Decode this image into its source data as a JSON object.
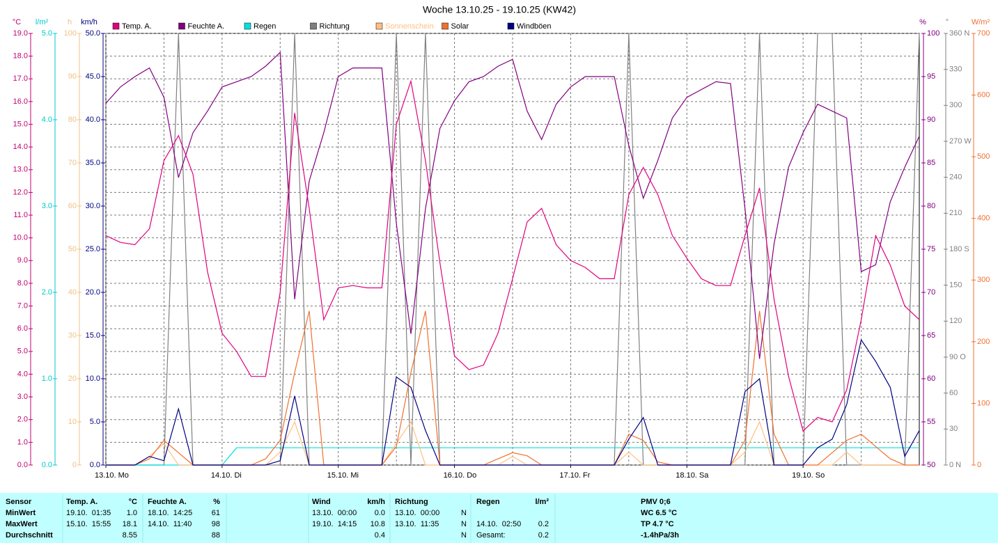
{
  "chart_data": {
    "type": "line",
    "title": "Woche 13.10.25 - 19.10.25 (KW42)",
    "xlim": [
      0,
      168
    ],
    "xticks": [
      {
        "value": 0,
        "label": "13.10. Mo"
      },
      {
        "value": 24,
        "label": "14.10. Di"
      },
      {
        "value": 48,
        "label": "15.10. Mi"
      },
      {
        "value": 72,
        "label": "16.10. Do"
      },
      {
        "value": 96,
        "label": "17.10. Fr"
      },
      {
        "value": 120,
        "label": "18.10. Sa"
      },
      {
        "value": 144,
        "label": "19.10. So"
      }
    ],
    "xgrid": [
      12,
      36,
      60,
      84,
      108,
      132,
      156
    ],
    "grid": true,
    "axes": [
      {
        "label": "°C",
        "color": "#c00070",
        "lim": [
          0,
          19
        ],
        "ticks": [
          {
            "value": 0,
            "label": "0.0"
          },
          {
            "value": 1,
            "label": "1.0"
          },
          {
            "value": 2,
            "label": "2.0"
          },
          {
            "value": 3,
            "label": "3.0"
          },
          {
            "value": 4,
            "label": "4.0"
          },
          {
            "value": 5,
            "label": "5.0"
          },
          {
            "value": 6,
            "label": "6.0"
          },
          {
            "value": 7,
            "label": "7.0"
          },
          {
            "value": 8,
            "label": "8.0"
          },
          {
            "value": 9,
            "label": "9.0"
          },
          {
            "value": 10,
            "label": "10.0"
          },
          {
            "value": 11,
            "label": "11.0"
          },
          {
            "value": 12,
            "label": "12.0"
          },
          {
            "value": 13,
            "label": "13.0"
          },
          {
            "value": 14,
            "label": "14.0"
          },
          {
            "value": 15,
            "label": "15.0"
          },
          {
            "value": 16,
            "label": "16.0"
          },
          {
            "value": 17,
            "label": "17.0"
          },
          {
            "value": 18,
            "label": "18.0"
          },
          {
            "value": 19,
            "label": "19.0"
          }
        ]
      },
      {
        "label": "l/m²",
        "color": "#00c8c8",
        "lim": [
          0,
          5
        ],
        "ticks": [
          {
            "value": 0,
            "label": "0.0"
          },
          {
            "value": 1,
            "label": "1.0"
          },
          {
            "value": 2,
            "label": "2.0"
          },
          {
            "value": 3,
            "label": "3.0"
          },
          {
            "value": 4,
            "label": "4.0"
          },
          {
            "value": 5,
            "label": "5.0"
          }
        ]
      },
      {
        "label": "h",
        "color": "#f0c080",
        "lim": [
          0,
          100
        ],
        "ticks": [
          0,
          10,
          20,
          30,
          40,
          50,
          60,
          70,
          80,
          90,
          100
        ]
      },
      {
        "label": "km/h",
        "color": "#000080",
        "lim": [
          0,
          50
        ],
        "ticks": [
          {
            "value": 0,
            "label": "0.0"
          },
          {
            "value": 5,
            "label": "5.0"
          },
          {
            "value": 10,
            "label": "10.0"
          },
          {
            "value": 15,
            "label": "15.0"
          },
          {
            "value": 20,
            "label": "20.0"
          },
          {
            "value": 25,
            "label": "25.0"
          },
          {
            "value": 30,
            "label": "30.0"
          },
          {
            "value": 35,
            "label": "35.0"
          },
          {
            "value": 40,
            "label": "40.0"
          },
          {
            "value": 45,
            "label": "45.0"
          },
          {
            "value": 50,
            "label": "50.0"
          }
        ]
      },
      {
        "label": "%",
        "color": "#800080",
        "lim": [
          50,
          100
        ],
        "ticks": [
          50,
          55,
          60,
          65,
          70,
          75,
          80,
          85,
          90,
          95,
          100
        ]
      },
      {
        "label": "°",
        "color": "#808080",
        "lim": [
          0,
          360
        ],
        "ticks": [
          {
            "value": 0,
            "label": "0 N"
          },
          30,
          60,
          {
            "value": 90,
            "label": "90 O"
          },
          120,
          150,
          {
            "value": 180,
            "label": "180 S"
          },
          210,
          240,
          {
            "value": 270,
            "label": "270 W"
          },
          300,
          330,
          {
            "value": 360,
            "label": "360 N"
          }
        ]
      },
      {
        "label": "W/m²",
        "color": "#f07030",
        "lim": [
          0,
          700
        ],
        "ticks": [
          0,
          100,
          200,
          300,
          400,
          500,
          600,
          700
        ]
      }
    ],
    "x": [
      0,
      3,
      6,
      9,
      12,
      15,
      18,
      21,
      24,
      27,
      30,
      33,
      36,
      39,
      42,
      45,
      48,
      51,
      54,
      57,
      60,
      63,
      66,
      69,
      72,
      75,
      78,
      81,
      84,
      87,
      90,
      93,
      96,
      99,
      102,
      105,
      108,
      111,
      114,
      117,
      120,
      123,
      126,
      129,
      132,
      135,
      138,
      141,
      144,
      147,
      150,
      153,
      156,
      159,
      162,
      165,
      168
    ],
    "series": [
      {
        "name": "Temp. A.",
        "color": "#e0007f",
        "axis": 0,
        "values": [
          10.1,
          9.8,
          9.7,
          10.4,
          13.4,
          14.5,
          12.8,
          8.5,
          5.8,
          5.0,
          3.9,
          3.9,
          7.6,
          15.5,
          11.3,
          6.4,
          7.8,
          7.9,
          7.8,
          7.8,
          15.0,
          16.9,
          13.4,
          8.9,
          4.8,
          4.2,
          4.4,
          5.8,
          8.2,
          10.7,
          11.3,
          9.7,
          9.0,
          8.7,
          8.2,
          8.2,
          11.9,
          13.1,
          11.9,
          10.1,
          9.1,
          8.2,
          7.9,
          7.9,
          10.1,
          12.2,
          7.3,
          3.9,
          1.5,
          2.1,
          1.9,
          3.3,
          6.4,
          10.1,
          8.8,
          7.0,
          6.4
        ]
      },
      {
        "name": "Feuchte A.",
        "color": "#800080",
        "axis": 4,
        "values": [
          91.9,
          93.8,
          95,
          96,
          92.6,
          83.3,
          88.5,
          91,
          93.8,
          94.4,
          95,
          96.2,
          97.8,
          69.2,
          82.9,
          88.5,
          95,
          96,
          96,
          96,
          78,
          65.2,
          79.7,
          89,
          92.2,
          94.4,
          95,
          96.2,
          97,
          91,
          87.7,
          91.8,
          93.8,
          95,
          95,
          95,
          87,
          80.9,
          85.3,
          90.2,
          92.6,
          93.5,
          94.4,
          94.2,
          79.7,
          62.3,
          75.6,
          84.5,
          88.5,
          91.8,
          91,
          90.2,
          72.4,
          73.2,
          80.5,
          84.5,
          88.1
        ]
      },
      {
        "name": "Regen",
        "color": "#00e0e0",
        "axis": 1,
        "values": [
          0,
          0,
          0,
          0,
          0,
          0,
          0,
          0,
          0,
          0.2,
          0.2,
          0.2,
          0.2,
          0.2,
          0.2,
          0.2,
          0.2,
          0.2,
          0.2,
          0.2,
          0.2,
          0.2,
          0.2,
          0.2,
          0.2,
          0.2,
          0.2,
          0.2,
          0.2,
          0.2,
          0.2,
          0.2,
          0.2,
          0.2,
          0.2,
          0.2,
          0.2,
          0.2,
          0.2,
          0.2,
          0.2,
          0.2,
          0.2,
          0.2,
          0.2,
          0.2,
          0.2,
          0.2,
          0.2,
          0.2,
          0.2,
          0.2,
          0.2,
          0.2,
          0.2,
          0.2,
          0.2
        ]
      },
      {
        "name": "Richtung",
        "color": "#808080",
        "axis": 5,
        "values": [
          0,
          0,
          0,
          0,
          0,
          360,
          0,
          0,
          0,
          0,
          0,
          0,
          0,
          360,
          0,
          0,
          0,
          0,
          0,
          0,
          360,
          0,
          360,
          0,
          0,
          0,
          0,
          0,
          0,
          0,
          0,
          0,
          0,
          0,
          0,
          0,
          360,
          0,
          0,
          0,
          0,
          0,
          0,
          0,
          0,
          360,
          0,
          0,
          0,
          360,
          360,
          0,
          0,
          0,
          0,
          0,
          360
        ]
      },
      {
        "name": "Sonnenschein",
        "color": "#ffc080",
        "axis": 2,
        "values": [
          0,
          0,
          0,
          2,
          5,
          0,
          0,
          0,
          0,
          0,
          0,
          0,
          3,
          10,
          0,
          0,
          0,
          0,
          0,
          0,
          5,
          10,
          0,
          0,
          0,
          0,
          0,
          0,
          2,
          0,
          0,
          0,
          0,
          0,
          0,
          0,
          3,
          0,
          0,
          0,
          0,
          0,
          0,
          0,
          3,
          10,
          0,
          0,
          0,
          0,
          0,
          3,
          0,
          0,
          0,
          0,
          0
        ]
      },
      {
        "name": "Solar",
        "color": "#f07030",
        "axis": 6,
        "values": [
          0,
          0,
          0,
          10,
          40,
          20,
          0,
          0,
          0,
          0,
          0,
          10,
          40,
          150,
          250,
          0,
          0,
          0,
          0,
          0,
          30,
          150,
          250,
          0,
          0,
          0,
          0,
          10,
          20,
          15,
          0,
          0,
          0,
          0,
          0,
          0,
          50,
          40,
          5,
          0,
          0,
          0,
          0,
          0,
          40,
          250,
          50,
          0,
          0,
          0,
          20,
          40,
          50,
          30,
          10,
          0,
          0
        ]
      },
      {
        "name": "Windböen",
        "color": "#000080",
        "axis": 3,
        "values": [
          0,
          0,
          0,
          1,
          0.5,
          6.5,
          0,
          0,
          0,
          0,
          0,
          0,
          0.5,
          8,
          0,
          0,
          0,
          0,
          0,
          0,
          10.2,
          9,
          4,
          0,
          0,
          0,
          0,
          0,
          0,
          0,
          0,
          0,
          0,
          0,
          0,
          0,
          3,
          5.5,
          0,
          0,
          0,
          0,
          0,
          0,
          8.5,
          10,
          0,
          0,
          0,
          2,
          3,
          7,
          14.5,
          12,
          9,
          1,
          4
        ]
      }
    ]
  },
  "table": {
    "header": [
      "Sensor",
      "Temp. A.",
      "°C",
      "Feuchte A.",
      "%",
      "Wind",
      "km/h",
      "Richtung",
      "Regen",
      "l/m²",
      "PMV 0;6"
    ],
    "rows": [
      [
        "MinWert",
        "19.10.  01:35",
        "1.0",
        "18.10.  14:25",
        "61",
        "13.10.  00:00",
        "0.0",
        "13.10.  00:00",
        "N",
        null,
        null,
        "WC 6.5 °C"
      ],
      [
        "MaxWert",
        "15.10.  15:55",
        "18.1",
        "14.10.  11:40",
        "98",
        "19.10.  14:15",
        "10.8",
        "13.10.  11:35",
        "N",
        "14.10.  02:50",
        "0.2",
        "TP 4.7 °C"
      ],
      [
        "Durchschnitt",
        null,
        "8.55",
        null,
        "88",
        null,
        "0.4",
        null,
        "N",
        "Gesamt:",
        "0.2",
        "-1.4hPa/3h"
      ]
    ]
  }
}
